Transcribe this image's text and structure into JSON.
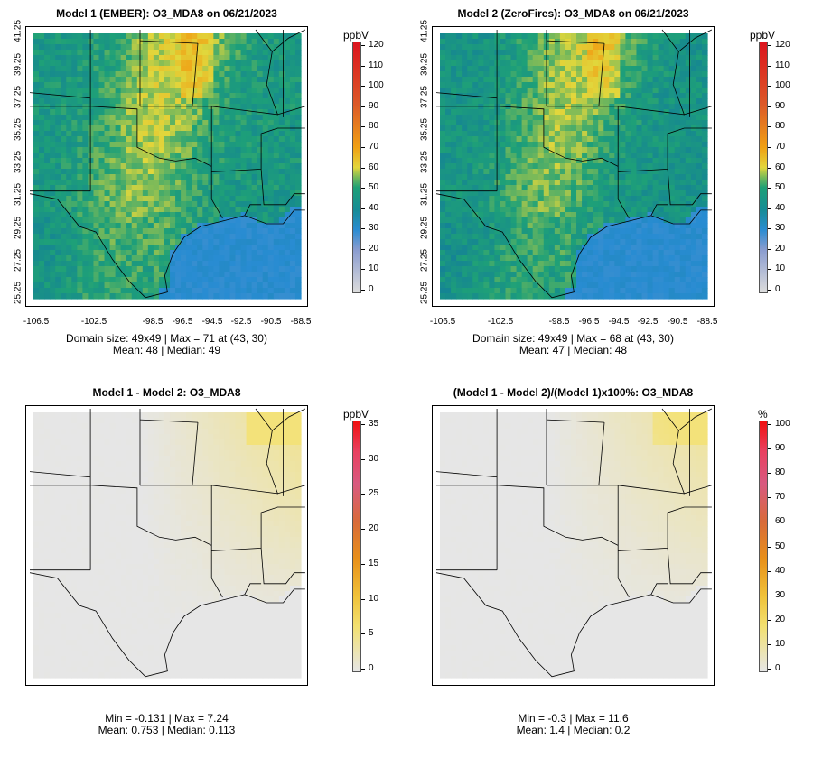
{
  "panels": [
    {
      "title": "Model 1 (EMBER): O3_MDA8 on 06/21/2023",
      "stats_line1": "Domain size: 49x49 | Max = 71 at (43, 30)",
      "stats_line2": "Mean: 48 |  Median: 49",
      "unit": "ppbV",
      "scale_ticks": [
        "0",
        "10",
        "20",
        "30",
        "40",
        "50",
        "60",
        "70",
        "80",
        "90",
        "100",
        "110",
        "120"
      ],
      "x_ticks": [
        "-106.5",
        "-102.5",
        "-98.5",
        "-96.5",
        "-94.5",
        "-92.5",
        "-90.5",
        "-88.5"
      ],
      "y_ticks": [
        "25.25",
        "27.25",
        "29.25",
        "31.25",
        "33.25",
        "35.25",
        "37.25",
        "39.25",
        "41.25"
      ],
      "scheme": "abs"
    },
    {
      "title": "Model 2 (ZeroFires): O3_MDA8 on 06/21/2023",
      "stats_line1": "Domain size: 49x49 | Max = 68 at (43, 30)",
      "stats_line2": "Mean: 47 |  Median: 48",
      "unit": "ppbV",
      "scale_ticks": [
        "0",
        "10",
        "20",
        "30",
        "40",
        "50",
        "60",
        "70",
        "80",
        "90",
        "100",
        "110",
        "120"
      ],
      "x_ticks": [
        "-106.5",
        "-102.5",
        "-98.5",
        "-96.5",
        "-94.5",
        "-92.5",
        "-90.5",
        "-88.5"
      ],
      "y_ticks": [
        "25.25",
        "27.25",
        "29.25",
        "31.25",
        "33.25",
        "35.25",
        "37.25",
        "39.25",
        "41.25"
      ],
      "scheme": "abs"
    },
    {
      "title": "Model 1 - Model 2: O3_MDA8",
      "stats_line1": "Min = -0.131 | Max = 7.24",
      "stats_line2": "Mean: 0.753 |  Median: 0.113",
      "unit": "ppbV",
      "scale_ticks": [
        "0",
        "5",
        "10",
        "15",
        "20",
        "25",
        "30",
        "35"
      ],
      "scheme": "diff"
    },
    {
      "title": "(Model 1 - Model 2)/(Model 1)x100%: O3_MDA8",
      "stats_line1": "Min = -0.3 | Max = 11.6",
      "stats_line2": "Mean: 1.4 |  Median: 0.2",
      "unit": "%",
      "scale_ticks": [
        "0",
        "10",
        "20",
        "30",
        "40",
        "50",
        "60",
        "70",
        "80",
        "90",
        "100"
      ],
      "scheme": "pct"
    }
  ],
  "colors": {
    "ocean": "#2f8fd0",
    "land_low": "#1b9e77",
    "land_mid": "#4fb07a",
    "high": "#f0d43a",
    "diff_bg": "#e6e6e6",
    "diff_hi": "#f3e27a"
  }
}
